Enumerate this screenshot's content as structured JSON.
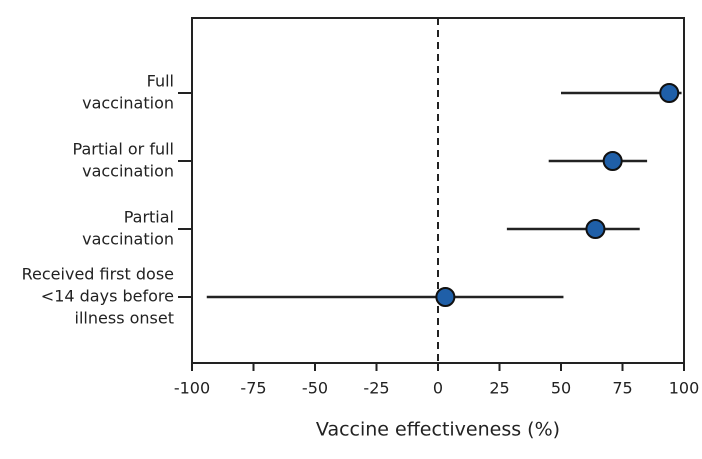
{
  "chart_data": {
    "type": "forest",
    "categories": [
      [
        "Full",
        "vaccination"
      ],
      [
        "Partial or full",
        "vaccination"
      ],
      [
        "Partial",
        "vaccination"
      ],
      [
        "Received first dose",
        "<14 days before",
        "illness onset"
      ]
    ],
    "values": [
      94,
      71,
      64,
      3
    ],
    "lower": [
      50,
      45,
      28,
      -94
    ],
    "upper": [
      99,
      85,
      82,
      51
    ],
    "color": "#1f5fa8",
    "x_label": "Vaccine effectiveness (%)",
    "xlim": [
      -100,
      100
    ],
    "xticks": [
      -100,
      -75,
      -50,
      -25,
      0,
      25,
      50,
      75,
      100
    ],
    "reference_line": 0
  }
}
